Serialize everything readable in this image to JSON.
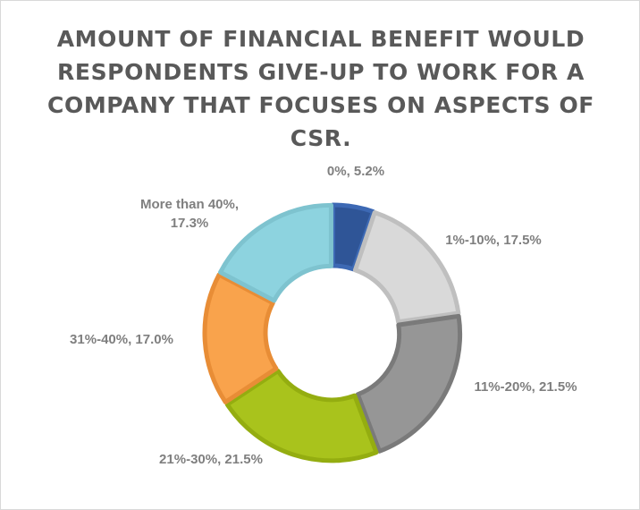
{
  "chart_data": {
    "type": "pie",
    "subtype": "doughnut",
    "title_lines": [
      "AMOUNT OF FINANCIAL BENEFIT WOULD",
      "RESPONDENTS GIVE-UP TO WORK FOR A",
      "COMPANY THAT FOCUSES ON ASPECTS OF",
      "CSR."
    ],
    "categories": [
      "0%",
      "1%-10%",
      "11%-20%",
      "21%-30%",
      "31%-40%",
      "More than 40%"
    ],
    "values": [
      5.2,
      17.5,
      21.5,
      21.5,
      17.0,
      17.3
    ],
    "value_suffix": "%",
    "colors": [
      "#2f5597",
      "#d9d9d9",
      "#969696",
      "#a9c31c",
      "#f9a34c",
      "#8dd3df"
    ],
    "border_colors": [
      "#3d69b4",
      "#bfbfbf",
      "#7a7a7a",
      "#94ad10",
      "#e88d36",
      "#7ec3cf"
    ],
    "data_label_lines": [
      [
        "0%, 5.2%"
      ],
      [
        "1%-10%, 17.5%"
      ],
      [
        "11%-20%, 21.5%"
      ],
      [
        "21%-30%, 21.5%"
      ],
      [
        "31%-40%, 17.0%"
      ],
      [
        "More than 40%,",
        "17.3%"
      ]
    ],
    "legend": "none",
    "start_angle_deg": 0
  }
}
